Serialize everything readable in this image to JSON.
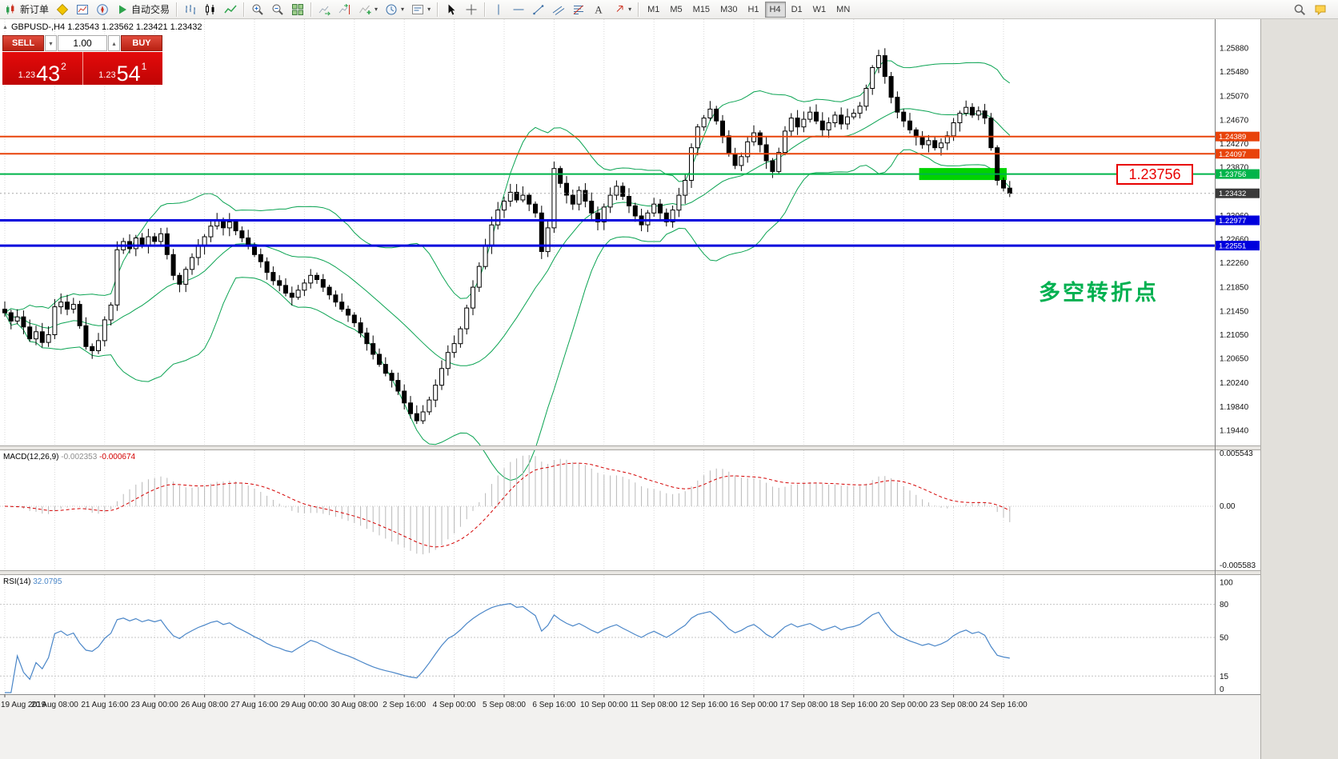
{
  "toolbar": {
    "groups": [
      {
        "items": [
          {
            "name": "new-order-button",
            "icon": "new-order",
            "label": "新订单"
          },
          {
            "name": "metaeditor-button",
            "icon": "metaeditor"
          },
          {
            "name": "market-watch-button",
            "icon": "market-watch"
          },
          {
            "name": "navigator-button",
            "icon": "navigator"
          },
          {
            "name": "autotrading-button",
            "icon": "autotrading",
            "label": "自动交易"
          }
        ]
      },
      {
        "items": [
          {
            "name": "bar-chart-button",
            "icon": "bars"
          },
          {
            "name": "candlestick-chart-button",
            "icon": "candles"
          },
          {
            "name": "line-chart-button",
            "icon": "line-chart"
          }
        ]
      },
      {
        "items": [
          {
            "name": "zoom-in-button",
            "icon": "zoom-in"
          },
          {
            "name": "zoom-out-button",
            "icon": "zoom-out"
          },
          {
            "name": "tile-windows-button",
            "icon": "tile-windows"
          }
        ]
      },
      {
        "items": [
          {
            "name": "auto-scroll-button",
            "icon": "auto-scroll"
          },
          {
            "name": "chart-shift-button",
            "icon": "chart-shift"
          },
          {
            "name": "indicators-button",
            "icon": "indicators",
            "caret": true
          },
          {
            "name": "periods-button",
            "icon": "periods",
            "caret": true
          },
          {
            "name": "templates-button",
            "icon": "templates",
            "caret": true
          }
        ]
      },
      {
        "items": [
          {
            "name": "cursor-button",
            "icon": "cursor"
          },
          {
            "name": "crosshair-button",
            "icon": "crosshair"
          }
        ]
      },
      {
        "items": [
          {
            "name": "vertical-line-button",
            "icon": "vertical-line"
          },
          {
            "name": "horizontal-line-button",
            "icon": "horizontal-line"
          },
          {
            "name": "trendline-button",
            "icon": "trendline"
          },
          {
            "name": "channel-button",
            "icon": "channel"
          },
          {
            "name": "fibonacci-button",
            "icon": "fibonacci"
          },
          {
            "name": "text-button",
            "icon": "text"
          },
          {
            "name": "arrows-button",
            "icon": "arrows",
            "caret": true
          }
        ]
      },
      {
        "items": [
          {
            "name": "tf-m1-button",
            "label": "M1",
            "tf": true
          },
          {
            "name": "tf-m5-button",
            "label": "M5",
            "tf": true
          },
          {
            "name": "tf-m15-button",
            "label": "M15",
            "tf": true
          },
          {
            "name": "tf-m30-button",
            "label": "M30",
            "tf": true
          },
          {
            "name": "tf-h1-button",
            "label": "H1",
            "tf": true
          },
          {
            "name": "tf-h4-button",
            "label": "H4",
            "tf": true,
            "active": true
          },
          {
            "name": "tf-d1-button",
            "label": "D1",
            "tf": true
          },
          {
            "name": "tf-w1-button",
            "label": "W1",
            "tf": true
          },
          {
            "name": "tf-mn-button",
            "label": "MN",
            "tf": true
          }
        ]
      }
    ],
    "right_items": [
      {
        "name": "search-button",
        "icon": "search"
      },
      {
        "name": "chat-button",
        "icon": "chat"
      }
    ]
  },
  "one_click": {
    "sell_label": "SELL",
    "buy_label": "BUY",
    "volume": "1.00",
    "sell_price": {
      "small": "1.23",
      "big": "43",
      "sup": "2"
    },
    "buy_price": {
      "small": "1.23",
      "big": "54",
      "sup": "1"
    }
  },
  "chart": {
    "symbol_header": "GBPUSD-,H4 1.23543 1.23562 1.23421 1.23432",
    "annotation": "多空转折点",
    "callout": "1.23756",
    "y_ticks": [
      "1.25880",
      "1.25480",
      "1.25070",
      "1.24670",
      "1.24270",
      "1.23870",
      "1.23460",
      "1.23060",
      "1.22660",
      "1.22260",
      "1.21850",
      "1.21450",
      "1.21050",
      "1.20650",
      "1.20240",
      "1.19840",
      "1.19440"
    ],
    "time_labels": [
      "19 Aug 2019",
      "20 Aug 08:00",
      "21 Aug 16:00",
      "23 Aug 00:00",
      "26 Aug 08:00",
      "27 Aug 16:00",
      "29 Aug 00:00",
      "30 Aug 08:00",
      "2 Sep 16:00",
      "4 Sep 00:00",
      "5 Sep 08:00",
      "6 Sep 16:00",
      "10 Sep 00:00",
      "11 Sep 08:00",
      "12 Sep 16:00",
      "16 Sep 00:00",
      "17 Sep 08:00",
      "18 Sep 16:00",
      "20 Sep 00:00",
      "23 Sep 08:00",
      "24 Sep 16:00"
    ],
    "levels": [
      {
        "label": "1.24389",
        "price": 1.24389,
        "color": "#e8430a",
        "thickness": 2
      },
      {
        "label": "1.24097",
        "price": 1.24097,
        "color": "#e8430a",
        "thickness": 2
      },
      {
        "label": "1.23756",
        "price": 1.23756,
        "color": "#00b44a",
        "thickness": 2
      },
      {
        "label": "1.23432",
        "price": 1.23432,
        "color": "#3a3a3a",
        "thickness": 1,
        "current": true
      },
      {
        "label": "1.22977",
        "price": 1.22977,
        "color": "#0000dd",
        "thickness": 3
      },
      {
        "label": "1.22551",
        "price": 1.22551,
        "color": "#0000dd",
        "thickness": 3
      }
    ],
    "highlight": {
      "start_bar": 147,
      "end_bar": 160,
      "price": 1.23756,
      "color": "#00d300"
    }
  },
  "macd": {
    "title": "MACD(12,26,9)",
    "main_value": "-0.002353",
    "signal_value": "-0.000674",
    "axis": [
      "0.005543",
      "0.00",
      "-0.005583"
    ]
  },
  "rsi": {
    "title": "RSI(14)",
    "value": "32.0795",
    "axis": [
      {
        "v": 100,
        "label": "100"
      },
      {
        "v": 80,
        "label": "80"
      },
      {
        "v": 50,
        "label": "50"
      },
      {
        "v": 15,
        "label": "15"
      },
      {
        "v": 0,
        "label": "0"
      }
    ],
    "levels": [
      80,
      50,
      15
    ]
  },
  "chart_data": {
    "type": "candlestick",
    "symbol": "GBPUSD-",
    "timeframe": "H4",
    "bars": 162,
    "closes": [
      1.2142,
      1.2128,
      1.2135,
      1.2118,
      1.2098,
      1.211,
      1.2092,
      1.2105,
      1.2152,
      1.216,
      1.2148,
      1.2156,
      1.212,
      1.2085,
      1.2078,
      1.2095,
      1.213,
      1.2155,
      1.2248,
      1.2262,
      1.225,
      1.2268,
      1.2255,
      1.227,
      1.2262,
      1.2275,
      1.224,
      1.2205,
      1.219,
      1.2215,
      1.2235,
      1.2255,
      1.227,
      1.2288,
      1.2298,
      1.2285,
      1.2295,
      1.228,
      1.2268,
      1.2255,
      1.224,
      1.2228,
      1.221,
      1.2196,
      1.2188,
      1.2175,
      1.2168,
      1.218,
      1.2192,
      1.2205,
      1.2198,
      1.2185,
      1.2172,
      1.216,
      1.2148,
      1.2138,
      1.2125,
      1.2108,
      1.209,
      1.2072,
      1.2055,
      1.204,
      1.2028,
      1.201,
      1.199,
      1.1972,
      1.196,
      1.1975,
      1.1995,
      1.202,
      1.2048,
      1.2075,
      1.209,
      1.2115,
      1.215,
      1.2185,
      1.222,
      1.2255,
      1.229,
      1.2315,
      1.233,
      1.2345,
      1.2332,
      1.234,
      1.2325,
      1.231,
      1.2245,
      1.2285,
      1.2385,
      1.236,
      1.234,
      1.2325,
      1.2348,
      1.233,
      1.231,
      1.2295,
      1.232,
      1.234,
      1.2355,
      1.2338,
      1.2322,
      1.2305,
      1.229,
      1.231,
      1.2325,
      1.231,
      1.2295,
      1.2315,
      1.234,
      1.2365,
      1.242,
      1.2455,
      1.247,
      1.2485,
      1.2465,
      1.244,
      1.241,
      1.239,
      1.2405,
      1.243,
      1.2445,
      1.2425,
      1.2398,
      1.238,
      1.2412,
      1.2448,
      1.247,
      1.2455,
      1.2468,
      1.248,
      1.2465,
      1.245,
      1.2462,
      1.2475,
      1.246,
      1.2472,
      1.2478,
      1.249,
      1.252,
      1.2555,
      1.2575,
      1.254,
      1.2505,
      1.248,
      1.2465,
      1.245,
      1.2438,
      1.2425,
      1.2432,
      1.242,
      1.2428,
      1.244,
      1.2462,
      1.2478,
      1.2488,
      1.2475,
      1.2482,
      1.247,
      1.242,
      1.2365,
      1.2352,
      1.23432
    ],
    "indicators": {
      "bollinger": {
        "period": 20,
        "deviation": 2
      },
      "macd": {
        "fast": 12,
        "slow": 26,
        "signal": 9
      },
      "rsi": {
        "period": 14
      }
    }
  }
}
